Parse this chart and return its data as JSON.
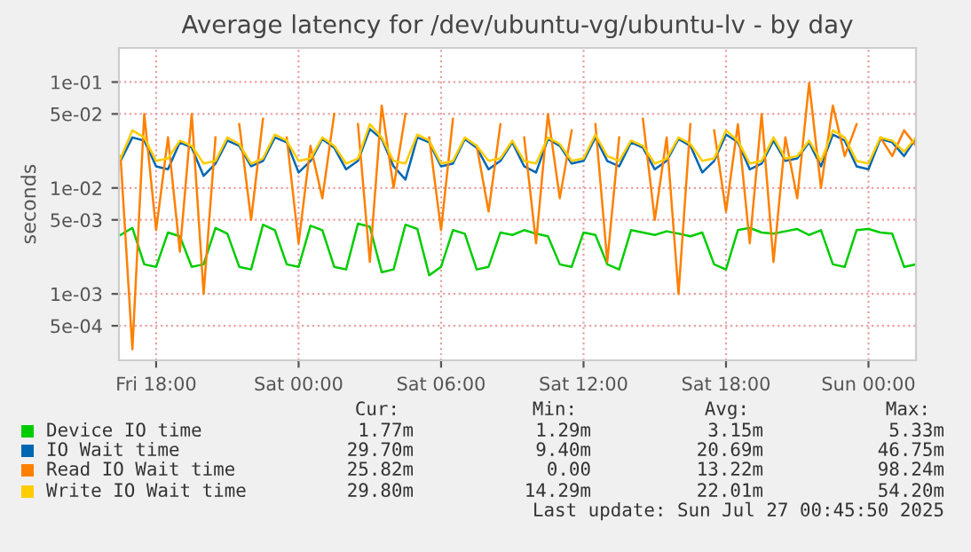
{
  "chart_data": {
    "type": "line",
    "title": "Average latency for /dev/ubuntu-vg/ubuntu-lv - by day",
    "ylabel": "seconds",
    "log": "y",
    "grid": true,
    "legend": "bottom",
    "ylim": [
      0.000236,
      0.21
    ],
    "yticks": [
      {
        "value": 0.1,
        "label": "1e-01"
      },
      {
        "value": 0.05,
        "label": "5e-02"
      },
      {
        "value": 0.01,
        "label": "1e-02"
      },
      {
        "value": 0.005,
        "label": "5e-03"
      },
      {
        "value": 0.001,
        "label": "1e-03"
      },
      {
        "value": 0.0005,
        "label": "5e-04"
      }
    ],
    "xlim": [
      "2025-07-25T16:26",
      "2025-07-27T02:00"
    ],
    "xticks": [
      {
        "value": "2025-07-25T18:00",
        "label": "Fri 18:00"
      },
      {
        "value": "2025-07-26T00:00",
        "label": "Sat 00:00"
      },
      {
        "value": "2025-07-26T06:00",
        "label": "Sat 06:00"
      },
      {
        "value": "2025-07-26T12:00",
        "label": "Sat 12:00"
      },
      {
        "value": "2025-07-26T18:00",
        "label": "Sat 18:00"
      },
      {
        "value": "2025-07-27T00:00",
        "label": "Sun 00:00"
      }
    ],
    "x": [
      "2025-07-25T16:30",
      "2025-07-25T17:00",
      "2025-07-25T17:30",
      "2025-07-25T18:00",
      "2025-07-25T18:30",
      "2025-07-25T19:00",
      "2025-07-25T19:30",
      "2025-07-25T20:00",
      "2025-07-25T20:30",
      "2025-07-25T21:00",
      "2025-07-25T21:30",
      "2025-07-25T22:00",
      "2025-07-25T22:30",
      "2025-07-25T23:00",
      "2025-07-25T23:30",
      "2025-07-26T00:00",
      "2025-07-26T00:30",
      "2025-07-26T01:00",
      "2025-07-26T01:30",
      "2025-07-26T02:00",
      "2025-07-26T02:30",
      "2025-07-26T03:00",
      "2025-07-26T03:30",
      "2025-07-26T04:00",
      "2025-07-26T04:30",
      "2025-07-26T05:00",
      "2025-07-26T05:30",
      "2025-07-26T06:00",
      "2025-07-26T06:30",
      "2025-07-26T07:00",
      "2025-07-26T07:30",
      "2025-07-26T08:00",
      "2025-07-26T08:30",
      "2025-07-26T09:00",
      "2025-07-26T09:30",
      "2025-07-26T10:00",
      "2025-07-26T10:30",
      "2025-07-26T11:00",
      "2025-07-26T11:30",
      "2025-07-26T12:00",
      "2025-07-26T12:30",
      "2025-07-26T13:00",
      "2025-07-26T13:30",
      "2025-07-26T14:00",
      "2025-07-26T14:30",
      "2025-07-26T15:00",
      "2025-07-26T15:30",
      "2025-07-26T16:00",
      "2025-07-26T16:30",
      "2025-07-26T17:00",
      "2025-07-26T17:30",
      "2025-07-26T18:00",
      "2025-07-26T18:30",
      "2025-07-26T19:00",
      "2025-07-26T19:30",
      "2025-07-26T20:00",
      "2025-07-26T20:30",
      "2025-07-26T21:00",
      "2025-07-26T21:30",
      "2025-07-26T22:00",
      "2025-07-26T22:30",
      "2025-07-26T23:00",
      "2025-07-26T23:30",
      "2025-07-27T00:00",
      "2025-07-27T00:30",
      "2025-07-27T01:00",
      "2025-07-27T01:30",
      "2025-07-27T02:00"
    ],
    "series": [
      {
        "name": "Device IO time",
        "color": "#00cc00",
        "values": [
          0.0036,
          0.0042,
          0.0019,
          0.0018,
          0.0038,
          0.0035,
          0.0018,
          0.0019,
          0.0042,
          0.0037,
          0.0018,
          0.0017,
          0.0045,
          0.004,
          0.0019,
          0.0018,
          0.0044,
          0.004,
          0.0018,
          0.0017,
          0.0046,
          0.0043,
          0.0016,
          0.0017,
          0.0045,
          0.0041,
          0.0015,
          0.0018,
          0.004,
          0.0037,
          0.0017,
          0.0018,
          0.0038,
          0.0036,
          0.004,
          0.0037,
          0.0035,
          0.0019,
          0.0018,
          0.0038,
          0.0036,
          0.0019,
          0.0017,
          0.004,
          0.0038,
          0.0036,
          0.0039,
          0.0037,
          0.0035,
          0.0038,
          0.0019,
          0.0017,
          0.004,
          0.0042,
          0.0038,
          0.0037,
          0.0039,
          0.0041,
          0.0036,
          0.004,
          0.0019,
          0.0018,
          0.004,
          0.0041,
          0.0038,
          0.0037,
          0.0018,
          0.0019
        ]
      },
      {
        "name": "IO Wait time",
        "color": "#0066b3",
        "values": [
          0.018,
          0.03,
          0.028,
          0.016,
          0.015,
          0.027,
          0.024,
          0.013,
          0.017,
          0.028,
          0.025,
          0.016,
          0.018,
          0.03,
          0.027,
          0.014,
          0.018,
          0.029,
          0.024,
          0.015,
          0.018,
          0.036,
          0.029,
          0.016,
          0.012,
          0.03,
          0.027,
          0.016,
          0.017,
          0.029,
          0.024,
          0.015,
          0.018,
          0.027,
          0.016,
          0.014,
          0.029,
          0.025,
          0.017,
          0.018,
          0.03,
          0.018,
          0.016,
          0.027,
          0.024,
          0.015,
          0.018,
          0.029,
          0.025,
          0.014,
          0.018,
          0.032,
          0.027,
          0.015,
          0.017,
          0.028,
          0.018,
          0.019,
          0.027,
          0.016,
          0.032,
          0.028,
          0.016,
          0.015,
          0.029,
          0.027,
          0.02,
          0.0297
        ]
      },
      {
        "name": "Read IO Wait time",
        "color": "#ff8000",
        "values": [
          0.02,
          0.0003,
          0.05,
          0.004,
          0.03,
          0.0025,
          0.05,
          0.001,
          0.03,
          null,
          0.04,
          0.005,
          0.045,
          null,
          0.03,
          0.003,
          0.025,
          0.008,
          0.05,
          null,
          0.04,
          0.002,
          0.06,
          0.01,
          0.05,
          null,
          0.03,
          0.004,
          0.045,
          null,
          0.025,
          0.006,
          0.04,
          null,
          0.03,
          0.003,
          0.05,
          0.008,
          0.035,
          null,
          0.04,
          0.002,
          0.03,
          null,
          0.045,
          0.005,
          0.03,
          0.001,
          0.04,
          null,
          0.035,
          0.006,
          0.04,
          0.003,
          0.05,
          0.002,
          0.03,
          0.008,
          0.098,
          0.01,
          0.06,
          0.02,
          0.04,
          null,
          0.03,
          0.02,
          0.035,
          0.025
        ]
      },
      {
        "name": "Write IO Wait time",
        "color": "#ffcc00",
        "values": [
          0.019,
          0.035,
          0.03,
          0.018,
          0.019,
          0.028,
          0.025,
          0.017,
          0.018,
          0.03,
          0.026,
          0.017,
          0.019,
          0.032,
          0.028,
          0.018,
          0.019,
          0.03,
          0.025,
          0.017,
          0.019,
          0.04,
          0.03,
          0.018,
          0.017,
          0.032,
          0.028,
          0.017,
          0.018,
          0.03,
          0.025,
          0.018,
          0.019,
          0.028,
          0.018,
          0.017,
          0.03,
          0.026,
          0.018,
          0.019,
          0.032,
          0.02,
          0.018,
          0.028,
          0.025,
          0.017,
          0.019,
          0.03,
          0.026,
          0.018,
          0.019,
          0.035,
          0.028,
          0.017,
          0.018,
          0.03,
          0.019,
          0.02,
          0.028,
          0.018,
          0.035,
          0.03,
          0.018,
          0.017,
          0.03,
          0.028,
          0.022,
          0.03
        ]
      }
    ],
    "annotations": [
      "Cur:",
      "Min:",
      "Avg:",
      "Max:",
      "1.77m",
      "1.29m",
      "3.15m",
      "5.33m",
      "29.70m",
      "9.40m",
      "20.69m",
      "46.75m",
      "25.82m",
      "0.00",
      "13.22m",
      "98.24m",
      "29.80m",
      "14.29m",
      "22.01m",
      "54.20m",
      "Last update: Sun Jul 27 00:45:50 2025"
    ]
  }
}
